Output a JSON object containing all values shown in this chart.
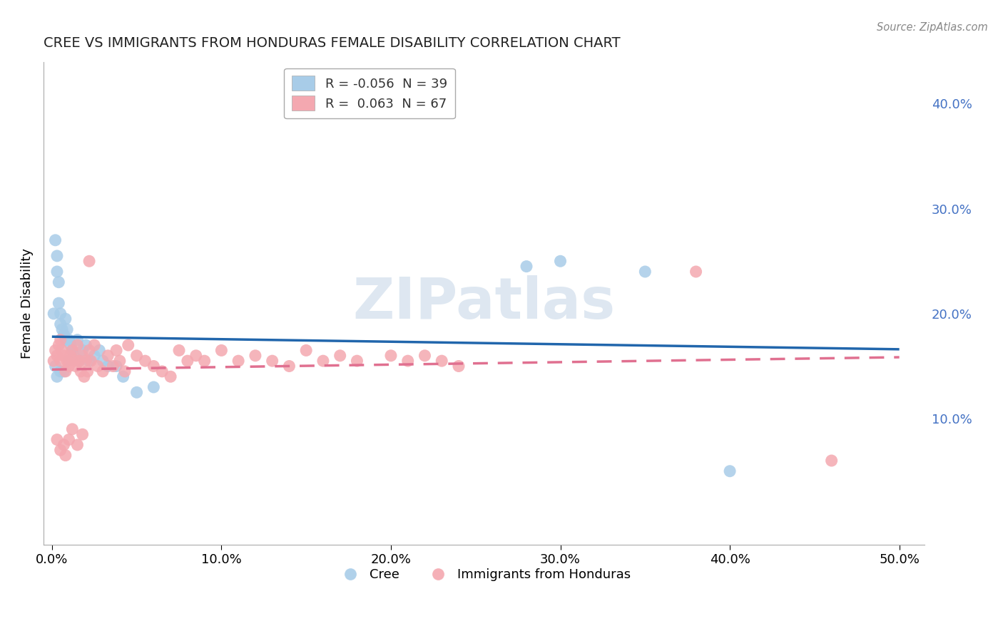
{
  "title": "CREE VS IMMIGRANTS FROM HONDURAS FEMALE DISABILITY CORRELATION CHART",
  "source": "Source: ZipAtlas.com",
  "ylabel": "Female Disability",
  "x_ticks": [
    0.0,
    0.1,
    0.2,
    0.3,
    0.4,
    0.5
  ],
  "x_tick_labels": [
    "0.0%",
    "10.0%",
    "20.0%",
    "30.0%",
    "40.0%",
    "50.0%"
  ],
  "y_ticks": [
    0.0,
    0.1,
    0.2,
    0.3,
    0.4
  ],
  "y_tick_labels": [
    "",
    "10.0%",
    "20.0%",
    "30.0%",
    "40.0%"
  ],
  "xlim": [
    -0.005,
    0.515
  ],
  "ylim": [
    -0.02,
    0.44
  ],
  "cree_color": "#a8cce8",
  "honduras_color": "#f4a8b0",
  "cree_R": -0.056,
  "cree_N": 39,
  "honduras_R": 0.063,
  "honduras_N": 67,
  "cree_x": [
    0.001,
    0.002,
    0.003,
    0.003,
    0.004,
    0.004,
    0.005,
    0.005,
    0.006,
    0.007,
    0.008,
    0.008,
    0.009,
    0.01,
    0.011,
    0.012,
    0.013,
    0.015,
    0.016,
    0.018,
    0.02,
    0.022,
    0.025,
    0.028,
    0.03,
    0.033,
    0.038,
    0.042,
    0.05,
    0.06,
    0.002,
    0.003,
    0.005,
    0.007,
    0.01,
    0.28,
    0.3,
    0.35,
    0.4
  ],
  "cree_y": [
    0.2,
    0.27,
    0.255,
    0.24,
    0.23,
    0.21,
    0.2,
    0.19,
    0.185,
    0.18,
    0.195,
    0.175,
    0.185,
    0.175,
    0.17,
    0.165,
    0.16,
    0.175,
    0.155,
    0.165,
    0.17,
    0.155,
    0.16,
    0.165,
    0.155,
    0.15,
    0.15,
    0.14,
    0.125,
    0.13,
    0.15,
    0.14,
    0.145,
    0.145,
    0.155,
    0.245,
    0.25,
    0.24,
    0.05
  ],
  "honduras_x": [
    0.001,
    0.002,
    0.003,
    0.004,
    0.005,
    0.005,
    0.006,
    0.007,
    0.008,
    0.009,
    0.01,
    0.011,
    0.012,
    0.013,
    0.014,
    0.015,
    0.016,
    0.017,
    0.018,
    0.019,
    0.02,
    0.021,
    0.022,
    0.023,
    0.025,
    0.027,
    0.03,
    0.033,
    0.036,
    0.038,
    0.04,
    0.043,
    0.045,
    0.05,
    0.055,
    0.06,
    0.065,
    0.07,
    0.075,
    0.08,
    0.085,
    0.09,
    0.1,
    0.11,
    0.12,
    0.13,
    0.14,
    0.15,
    0.16,
    0.17,
    0.18,
    0.2,
    0.21,
    0.22,
    0.23,
    0.24,
    0.003,
    0.005,
    0.007,
    0.008,
    0.01,
    0.012,
    0.015,
    0.018,
    0.022,
    0.38,
    0.46
  ],
  "honduras_y": [
    0.155,
    0.165,
    0.16,
    0.17,
    0.175,
    0.155,
    0.165,
    0.16,
    0.145,
    0.155,
    0.15,
    0.16,
    0.165,
    0.155,
    0.15,
    0.17,
    0.155,
    0.145,
    0.16,
    0.14,
    0.155,
    0.145,
    0.165,
    0.155,
    0.17,
    0.15,
    0.145,
    0.16,
    0.15,
    0.165,
    0.155,
    0.145,
    0.17,
    0.16,
    0.155,
    0.15,
    0.145,
    0.14,
    0.165,
    0.155,
    0.16,
    0.155,
    0.165,
    0.155,
    0.16,
    0.155,
    0.15,
    0.165,
    0.155,
    0.16,
    0.155,
    0.16,
    0.155,
    0.16,
    0.155,
    0.15,
    0.08,
    0.07,
    0.075,
    0.065,
    0.08,
    0.09,
    0.075,
    0.085,
    0.25,
    0.24,
    0.06
  ],
  "grid_color": "#cccccc",
  "background_color": "#ffffff",
  "trend_blue_color": "#2166ac",
  "trend_pink_color": "#e07090",
  "watermark_text": "ZIPatlas",
  "legend_r_color": "#4472c4"
}
